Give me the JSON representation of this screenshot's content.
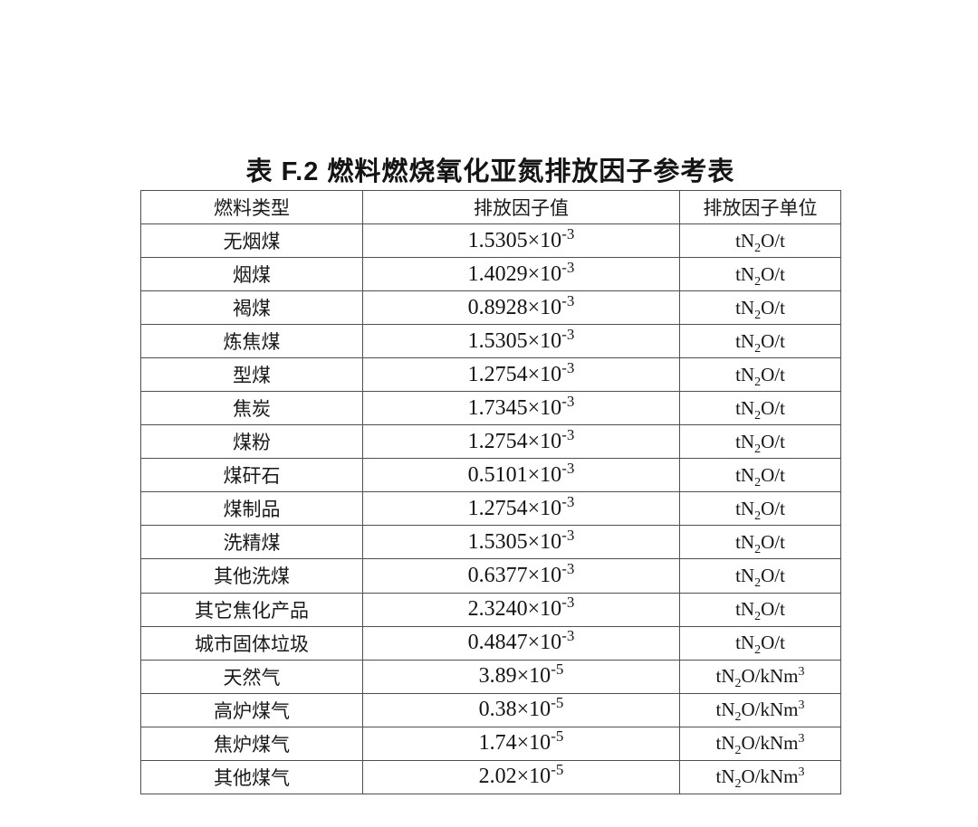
{
  "page": {
    "title": "表 F.2 燃料燃烧氧化亚氮排放因子参考表"
  },
  "colors": {
    "background": "#ffffff",
    "text": "#1b1b1b",
    "table_border": "#4f4f4f"
  },
  "table": {
    "headers": {
      "fuel": "燃料类型",
      "value": "排放因子值",
      "unit": "排放因子单位"
    },
    "rows": [
      {
        "fuel": "无烟煤",
        "value_base": "1.5305×10",
        "value_exp": "-3",
        "unit_pre": "tN",
        "unit_sub": "2",
        "unit_mid": "O/t",
        "unit_sup": ""
      },
      {
        "fuel": "烟煤",
        "value_base": "1.4029×10",
        "value_exp": "-3",
        "unit_pre": "tN",
        "unit_sub": "2",
        "unit_mid": "O/t",
        "unit_sup": ""
      },
      {
        "fuel": "褐煤",
        "value_base": "0.8928×10",
        "value_exp": "-3",
        "unit_pre": "tN",
        "unit_sub": "2",
        "unit_mid": "O/t",
        "unit_sup": ""
      },
      {
        "fuel": "炼焦煤",
        "value_base": "1.5305×10",
        "value_exp": "-3",
        "unit_pre": "tN",
        "unit_sub": "2",
        "unit_mid": "O/t",
        "unit_sup": ""
      },
      {
        "fuel": "型煤",
        "value_base": "1.2754×10",
        "value_exp": "-3",
        "unit_pre": "tN",
        "unit_sub": "2",
        "unit_mid": "O/t",
        "unit_sup": ""
      },
      {
        "fuel": "焦炭",
        "value_base": "1.7345×10",
        "value_exp": "-3",
        "unit_pre": "tN",
        "unit_sub": "2",
        "unit_mid": "O/t",
        "unit_sup": ""
      },
      {
        "fuel": "煤粉",
        "value_base": "1.2754×10",
        "value_exp": "-3",
        "unit_pre": "tN",
        "unit_sub": "2",
        "unit_mid": "O/t",
        "unit_sup": ""
      },
      {
        "fuel": "煤矸石",
        "value_base": "0.5101×10",
        "value_exp": "-3",
        "unit_pre": "tN",
        "unit_sub": "2",
        "unit_mid": "O/t",
        "unit_sup": ""
      },
      {
        "fuel": "煤制品",
        "value_base": "1.2754×10",
        "value_exp": "-3",
        "unit_pre": "tN",
        "unit_sub": "2",
        "unit_mid": "O/t",
        "unit_sup": ""
      },
      {
        "fuel": "洗精煤",
        "value_base": "1.5305×10",
        "value_exp": "-3",
        "unit_pre": "tN",
        "unit_sub": "2",
        "unit_mid": "O/t",
        "unit_sup": ""
      },
      {
        "fuel": "其他洗煤",
        "value_base": "0.6377×10",
        "value_exp": "-3",
        "unit_pre": "tN",
        "unit_sub": "2",
        "unit_mid": "O/t",
        "unit_sup": ""
      },
      {
        "fuel": "其它焦化产品",
        "value_base": "2.3240×10",
        "value_exp": "-3",
        "unit_pre": "tN",
        "unit_sub": "2",
        "unit_mid": "O/t",
        "unit_sup": ""
      },
      {
        "fuel": "城市固体垃圾",
        "value_base": "0.4847×10",
        "value_exp": "-3",
        "unit_pre": "tN",
        "unit_sub": "2",
        "unit_mid": "O/t",
        "unit_sup": ""
      },
      {
        "fuel": "天然气",
        "value_base": "3.89×10",
        "value_exp": "-5",
        "unit_pre": "tN",
        "unit_sub": "2",
        "unit_mid": "O/kNm",
        "unit_sup": "3"
      },
      {
        "fuel": "高炉煤气",
        "value_base": "0.38×10",
        "value_exp": "-5",
        "unit_pre": "tN",
        "unit_sub": "2",
        "unit_mid": "O/kNm",
        "unit_sup": "3"
      },
      {
        "fuel": "焦炉煤气",
        "value_base": "1.74×10",
        "value_exp": "-5",
        "unit_pre": "tN",
        "unit_sub": "2",
        "unit_mid": "O/kNm",
        "unit_sup": "3"
      },
      {
        "fuel": "其他煤气",
        "value_base": "2.02×10",
        "value_exp": "-5",
        "unit_pre": "tN",
        "unit_sub": "2",
        "unit_mid": "O/kNm",
        "unit_sup": "3"
      }
    ]
  }
}
